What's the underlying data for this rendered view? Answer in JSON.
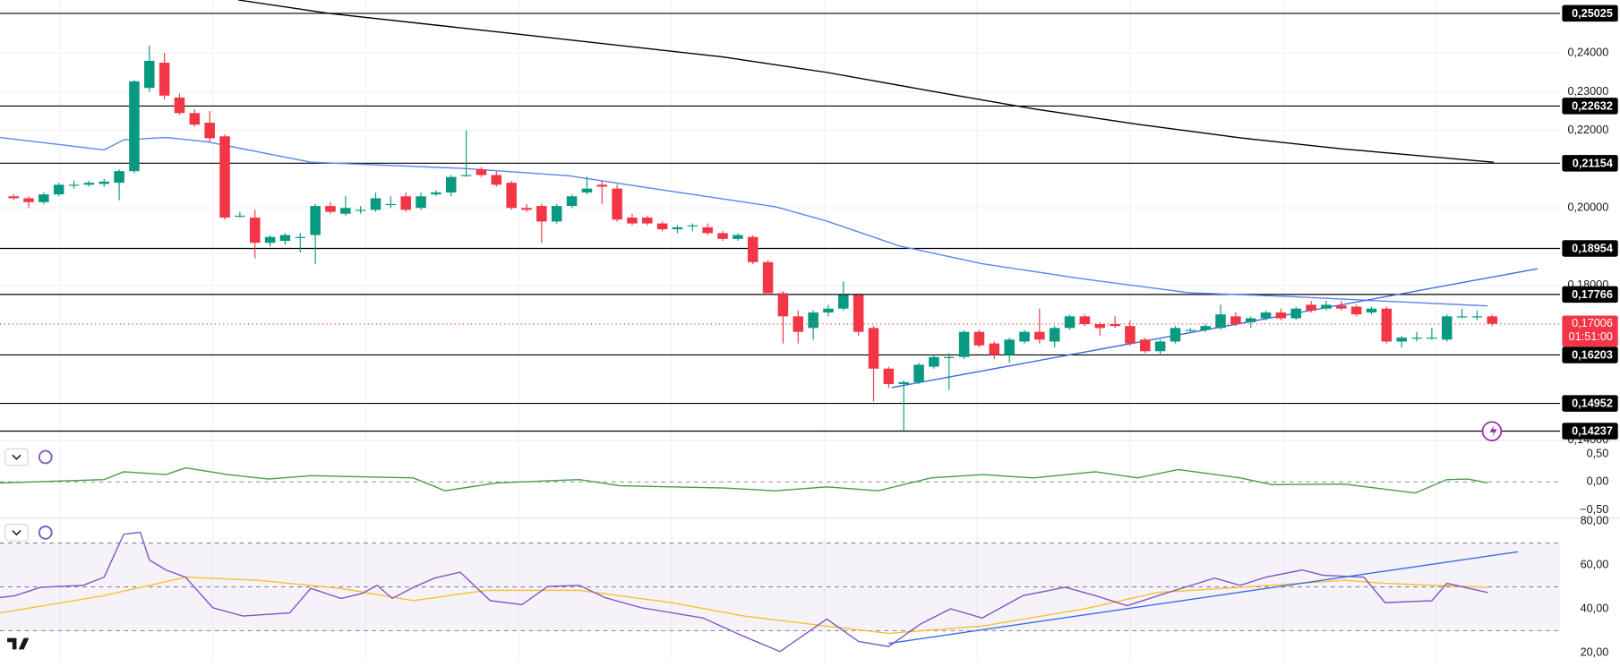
{
  "chart_data": [
    {
      "type": "candlestick",
      "up_color": "#089981",
      "down_color": "#f23645",
      "xlim": [
        -0.9,
        102.5
      ],
      "ylim": [
        0.1402,
        0.2537
      ],
      "yticks": [
        {
          "value": 0.24,
          "label": "0,24000"
        },
        {
          "value": 0.23,
          "label": "0,23000"
        },
        {
          "value": 0.22,
          "label": "0,22000"
        },
        {
          "value": 0.2,
          "label": "0,20000"
        },
        {
          "value": 0.18,
          "label": "0,18000"
        },
        {
          "value": 0.14,
          "label": "0,14000"
        }
      ],
      "grid": true,
      "ohlc": [
        [
          0.203,
          0.2035,
          0.202,
          0.2025
        ],
        [
          0.2025,
          0.203,
          0.2,
          0.2015
        ],
        [
          0.2015,
          0.204,
          0.201,
          0.2035
        ],
        [
          0.2035,
          0.2065,
          0.203,
          0.206
        ],
        [
          0.206,
          0.207,
          0.205,
          0.206
        ],
        [
          0.206,
          0.207,
          0.2055,
          0.2065
        ],
        [
          0.2062,
          0.2075,
          0.2055,
          0.2068
        ],
        [
          0.2065,
          0.21,
          0.202,
          0.2095
        ],
        [
          0.2095,
          0.233,
          0.209,
          0.2327
        ],
        [
          0.231,
          0.242,
          0.23,
          0.238
        ],
        [
          0.2375,
          0.24,
          0.228,
          0.229
        ],
        [
          0.2285,
          0.2295,
          0.224,
          0.2245
        ],
        [
          0.2245,
          0.2255,
          0.221,
          0.2215
        ],
        [
          0.222,
          0.225,
          0.217,
          0.218
        ],
        [
          0.2185,
          0.219,
          0.197,
          0.1975
        ],
        [
          0.198,
          0.199,
          0.1975,
          0.198
        ],
        [
          0.1975,
          0.1995,
          0.187,
          0.191
        ],
        [
          0.191,
          0.193,
          0.19,
          0.1925
        ],
        [
          0.1915,
          0.1935,
          0.1905,
          0.193
        ],
        [
          0.1925,
          0.1935,
          0.1885,
          0.1925
        ],
        [
          0.193,
          0.201,
          0.1855,
          0.2005
        ],
        [
          0.2005,
          0.2015,
          0.1985,
          0.199
        ],
        [
          0.1985,
          0.203,
          0.198,
          0.2
        ],
        [
          0.1995,
          0.2005,
          0.1985,
          0.1995
        ],
        [
          0.1995,
          0.204,
          0.199,
          0.2025
        ],
        [
          0.201,
          0.203,
          0.2,
          0.201
        ],
        [
          0.203,
          0.204,
          0.199,
          0.1995
        ],
        [
          0.2,
          0.204,
          0.1995,
          0.203
        ],
        [
          0.2035,
          0.2045,
          0.203,
          0.204
        ],
        [
          0.204,
          0.2085,
          0.203,
          0.208
        ],
        [
          0.2085,
          0.22,
          0.208,
          0.2085
        ],
        [
          0.21,
          0.2105,
          0.208,
          0.2085
        ],
        [
          0.2085,
          0.2095,
          0.2055,
          0.206
        ],
        [
          0.2065,
          0.207,
          0.1995,
          0.2
        ],
        [
          0.2,
          0.201,
          0.199,
          0.1995
        ],
        [
          0.2005,
          0.201,
          0.191,
          0.1965
        ],
        [
          0.1965,
          0.201,
          0.196,
          0.2005
        ],
        [
          0.2005,
          0.2035,
          0.2,
          0.203
        ],
        [
          0.204,
          0.208,
          0.2035,
          0.205
        ],
        [
          0.206,
          0.207,
          0.201,
          0.2055
        ],
        [
          0.205,
          0.206,
          0.1965,
          0.197
        ],
        [
          0.1975,
          0.1985,
          0.1955,
          0.196
        ],
        [
          0.1975,
          0.198,
          0.1955,
          0.196
        ],
        [
          0.196,
          0.1965,
          0.194,
          0.1945
        ],
        [
          0.1945,
          0.1955,
          0.1935,
          0.195
        ],
        [
          0.1955,
          0.196,
          0.194,
          0.1955
        ],
        [
          0.195,
          0.196,
          0.193,
          0.1935
        ],
        [
          0.1935,
          0.194,
          0.1915,
          0.192
        ],
        [
          0.192,
          0.1935,
          0.1915,
          0.193
        ],
        [
          0.1925,
          0.193,
          0.1855,
          0.186
        ],
        [
          0.186,
          0.1865,
          0.1775,
          0.178
        ],
        [
          0.178,
          0.1785,
          0.165,
          0.172
        ],
        [
          0.172,
          0.1735,
          0.165,
          0.168
        ],
        [
          0.169,
          0.1735,
          0.166,
          0.173
        ],
        [
          0.173,
          0.175,
          0.172,
          0.174
        ],
        [
          0.174,
          0.181,
          0.1735,
          0.1775
        ],
        [
          0.1775,
          0.178,
          0.167,
          0.168
        ],
        [
          0.169,
          0.1695,
          0.15,
          0.1585
        ],
        [
          0.1585,
          0.159,
          0.1535,
          0.1545
        ],
        [
          0.1545,
          0.1555,
          0.1424,
          0.155
        ],
        [
          0.155,
          0.16,
          0.1545,
          0.1595
        ],
        [
          0.159,
          0.162,
          0.1585,
          0.1615
        ],
        [
          0.1615,
          0.1625,
          0.153,
          0.1615
        ],
        [
          0.1615,
          0.1685,
          0.161,
          0.168
        ],
        [
          0.168,
          0.1685,
          0.164,
          0.1645
        ],
        [
          0.165,
          0.1655,
          0.161,
          0.162
        ],
        [
          0.162,
          0.1665,
          0.16,
          0.166
        ],
        [
          0.1655,
          0.1685,
          0.165,
          0.168
        ],
        [
          0.168,
          0.174,
          0.165,
          0.166
        ],
        [
          0.1655,
          0.1695,
          0.164,
          0.169
        ],
        [
          0.169,
          0.1725,
          0.1685,
          0.172
        ],
        [
          0.172,
          0.1725,
          0.1695,
          0.17
        ],
        [
          0.17,
          0.1705,
          0.167,
          0.169
        ],
        [
          0.17,
          0.172,
          0.169,
          0.1695
        ],
        [
          0.1695,
          0.171,
          0.1645,
          0.165
        ],
        [
          0.166,
          0.1665,
          0.1625,
          0.163
        ],
        [
          0.163,
          0.166,
          0.162,
          0.1655
        ],
        [
          0.1655,
          0.1695,
          0.165,
          0.169
        ],
        [
          0.1685,
          0.169,
          0.168,
          0.1685
        ],
        [
          0.1685,
          0.17,
          0.168,
          0.1695
        ],
        [
          0.169,
          0.175,
          0.1685,
          0.1725
        ],
        [
          0.172,
          0.173,
          0.1695,
          0.17
        ],
        [
          0.1705,
          0.172,
          0.169,
          0.1715
        ],
        [
          0.1715,
          0.1735,
          0.171,
          0.173
        ],
        [
          0.173,
          0.174,
          0.171,
          0.1715
        ],
        [
          0.1715,
          0.1745,
          0.171,
          0.174
        ],
        [
          0.175,
          0.176,
          0.173,
          0.1735
        ],
        [
          0.174,
          0.176,
          0.1735,
          0.175
        ],
        [
          0.1748,
          0.176,
          0.1735,
          0.174
        ],
        [
          0.1745,
          0.175,
          0.172,
          0.1725
        ],
        [
          0.173,
          0.1745,
          0.1725,
          0.174
        ],
        [
          0.174,
          0.1745,
          0.165,
          0.1655
        ],
        [
          0.1655,
          0.167,
          0.164,
          0.1665
        ],
        [
          0.1665,
          0.168,
          0.1655,
          0.1665
        ],
        [
          0.1665,
          0.169,
          0.166,
          0.1665
        ],
        [
          0.166,
          0.1725,
          0.1655,
          0.172
        ],
        [
          0.172,
          0.174,
          0.1715,
          0.172
        ],
        [
          0.172,
          0.1735,
          0.171,
          0.172
        ],
        [
          0.172,
          0.1725,
          0.1695,
          0.17006
        ]
      ],
      "series": [
        {
          "color": "#5b84f0",
          "x": [
            -0.9,
            6,
            7.3,
            10.1,
            12.8,
            19.7,
            29.9,
            36.8,
            43.6,
            50.5,
            53.9,
            58.7,
            64.2,
            71,
            77.9,
            84.7,
            91.6,
            97.7
          ],
          "values": [
            0.2182,
            0.215,
            0.2176,
            0.2182,
            0.2171,
            0.2118,
            0.2102,
            0.2083,
            0.2043,
            0.2003,
            0.1966,
            0.1902,
            0.1856,
            0.1816,
            0.1781,
            0.1771,
            0.1758,
            0.1747
          ]
        },
        {
          "color": "#000000",
          "x": [
            14.9,
            21,
            33.4,
            47,
            53.9,
            60.8,
            67.6,
            74.5,
            81.3,
            88.2,
            98.1
          ],
          "values": [
            0.2537,
            0.2502,
            0.2449,
            0.239,
            0.235,
            0.2302,
            0.2256,
            0.2216,
            0.2181,
            0.2152,
            0.2118
          ]
        },
        {
          "color": "#3d6ae0",
          "x": [
            58.2,
            101
          ],
          "values": [
            0.1536,
            0.1843
          ]
        }
      ],
      "levels": [
        {
          "value": 0.25025,
          "label": "0,25025"
        },
        {
          "value": 0.22632,
          "label": "0,22632"
        },
        {
          "value": 0.21154,
          "label": "0,21154"
        },
        {
          "value": 0.18954,
          "label": "0,18954"
        },
        {
          "value": 0.17766,
          "label": "0,17766"
        },
        {
          "value": 0.16203,
          "label": "0,16203"
        },
        {
          "value": 0.14952,
          "label": "0,14952"
        },
        {
          "value": 0.14237,
          "label": "0,14237"
        }
      ],
      "last_price": {
        "value": 0.17006,
        "label": "0,17006"
      },
      "countdown": "01:51:00"
    },
    {
      "type": "line",
      "xlim": [
        -0.9,
        102.5
      ],
      "ylim": [
        -0.63,
        0.72
      ],
      "yticks": [
        {
          "value": 0.5,
          "label": "0,50"
        },
        {
          "value": 0,
          "label": "0,00"
        },
        {
          "value": -0.5,
          "label": "−0,50"
        }
      ],
      "bands": [
        0
      ],
      "series": [
        {
          "color": "#43a047",
          "x": [
            -0.9,
            6,
            7.3,
            10.1,
            11.4,
            14.2,
            16.9,
            19.7,
            26.5,
            28.6,
            32,
            37.5,
            40.2,
            47.1,
            50.5,
            53.9,
            57.3,
            60.8,
            64.2,
            67.6,
            71.7,
            74.5,
            77.2,
            81.3,
            83.4,
            88.2,
            92.9,
            95,
            96.4,
            97.7
          ],
          "values": [
            -0.02,
            0.04,
            0.18,
            0.13,
            0.25,
            0.13,
            0.05,
            0.11,
            0.07,
            -0.16,
            -0.02,
            0.04,
            -0.07,
            -0.11,
            -0.16,
            -0.09,
            -0.16,
            0.07,
            0.13,
            0.07,
            0.18,
            0.07,
            0.22,
            0.07,
            -0.05,
            -0.04,
            -0.2,
            0.04,
            0.05,
            -0.02
          ]
        }
      ]
    },
    {
      "type": "line",
      "xlim": [
        -0.9,
        102.5
      ],
      "ylim": [
        15.8,
        80.9
      ],
      "yticks": [
        {
          "value": 80,
          "label": "80,00"
        },
        {
          "value": 60,
          "label": "60,00"
        },
        {
          "value": 40,
          "label": "40,00"
        },
        {
          "value": 20,
          "label": "20,00"
        }
      ],
      "bands": [
        30,
        50,
        70
      ],
      "band_fill": "rgba(126,87,194,0.08)",
      "series": [
        {
          "color": "#fbc02d",
          "x": [
            -0.9,
            6,
            11.4,
            16.2,
            21.7,
            26.5,
            31.3,
            37.5,
            43.6,
            48.4,
            53.9,
            58,
            64.2,
            71,
            75.8,
            81.3,
            88.2,
            90.9,
            97.7
          ],
          "values": [
            38.1,
            46,
            54.4,
            53,
            49.3,
            43.7,
            48.4,
            48.4,
            42.8,
            36.7,
            32.1,
            28.8,
            32.1,
            40,
            47.4,
            49.8,
            53,
            51.6,
            49.8
          ]
        },
        {
          "color": "#7e57c2",
          "x": [
            -0.9,
            0.1,
            1.8,
            4.6,
            6,
            7.3,
            8.4,
            9,
            10.1,
            11.4,
            13.2,
            15.2,
            18.3,
            19.7,
            21.7,
            23.1,
            24.1,
            25.1,
            26.5,
            27.9,
            29.6,
            31.6,
            33.7,
            35.4,
            37.5,
            39.2,
            41.6,
            45.7,
            48.4,
            50.8,
            53.9,
            56,
            58,
            60.1,
            62.1,
            64.2,
            66.9,
            69.7,
            71.7,
            73.8,
            76.5,
            79.6,
            81.3,
            83,
            85.4,
            86.8,
            89.5,
            90.9,
            94,
            95,
            97.7
          ],
          "values": [
            45.1,
            46,
            49.8,
            50.7,
            54.4,
            74,
            74.9,
            62.3,
            57.7,
            54.4,
            40.5,
            36.7,
            38.1,
            49.3,
            44.7,
            47,
            50.7,
            44.7,
            49.8,
            54,
            56.7,
            43.7,
            41.9,
            50.2,
            50.7,
            45.1,
            40.5,
            35.8,
            27.4,
            20.5,
            35.3,
            25.1,
            22.8,
            33,
            40,
            35.8,
            46,
            49.8,
            46,
            41.4,
            47.4,
            54,
            50.7,
            54.4,
            57.7,
            55.3,
            54.4,
            42.8,
            43.7,
            51.6,
            47.4
          ]
        },
        {
          "color": "#3d6ae0",
          "x": [
            58,
            99.7
          ],
          "values": [
            24.2,
            66
          ]
        }
      ]
    }
  ]
}
